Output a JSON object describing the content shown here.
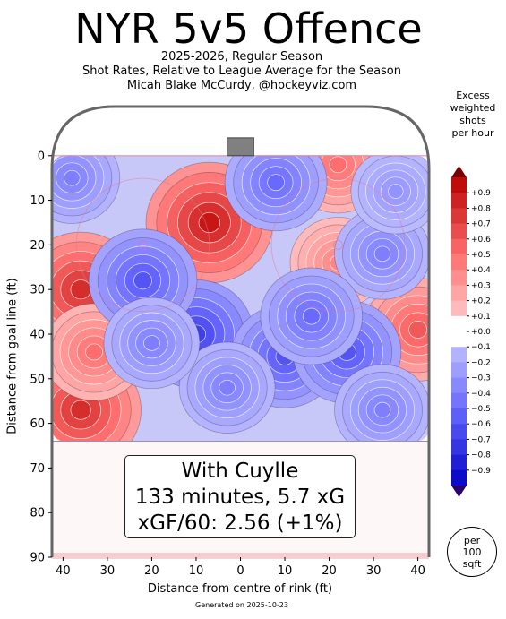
{
  "header": {
    "title": "NYR 5v5 Offence",
    "subtitle_lines": [
      "2025-2026, Regular Season",
      "Shot Rates, Relative to League Average for the Season",
      "Micah Blake McCurdy, @hockeyviz.com"
    ]
  },
  "infobox": {
    "line1": "With Cuylle",
    "line2": "133 minutes, 5.7 xG",
    "line3": "xGF/60: 2.56 (+1%)"
  },
  "unit_badge": {
    "line1": "per",
    "line2": "100",
    "line3": "sqft"
  },
  "footer": "Generated on 2025-10-23",
  "chart_data": {
    "type": "heatmap",
    "title": "NYR 5v5 Offence",
    "xlabel": "Distance from centre of rink (ft)",
    "ylabel": "Distance from goal line (ft)",
    "x_ticks": [
      "40",
      "30",
      "20",
      "10",
      "0",
      "10",
      "20",
      "30",
      "40"
    ],
    "x_tick_values": [
      -40,
      -30,
      -20,
      -10,
      0,
      10,
      20,
      30,
      40
    ],
    "y_ticks": [
      "0",
      "10",
      "20",
      "30",
      "40",
      "50",
      "60",
      "70",
      "80",
      "90"
    ],
    "y_tick_values": [
      0,
      10,
      20,
      30,
      40,
      50,
      60,
      70,
      80,
      90
    ],
    "xlim": [
      -42.5,
      42.5
    ],
    "ylim": [
      90,
      -11
    ],
    "colorbar": {
      "title_lines": [
        "Excess",
        "weighted",
        "shots",
        "per hour"
      ],
      "tick_labels": [
        "+0.9",
        "+0.8",
        "+0.7",
        "+0.6",
        "+0.5",
        "+0.4",
        "+0.3",
        "+0.2",
        "+0.1",
        "+0.0",
        "−0.1",
        "−0.2",
        "−0.3",
        "−0.4",
        "−0.5",
        "−0.6",
        "−0.7",
        "−0.8",
        "−0.9"
      ],
      "tick_values": [
        0.9,
        0.8,
        0.7,
        0.6,
        0.5,
        0.4,
        0.3,
        0.2,
        0.1,
        0.0,
        -0.1,
        -0.2,
        -0.3,
        -0.4,
        -0.5,
        -0.6,
        -0.7,
        -0.8,
        -0.9
      ],
      "range": [
        -1.0,
        1.0
      ]
    },
    "hotspots": [
      {
        "x": -7,
        "y": 15,
        "value": 0.9
      },
      {
        "x": -36,
        "y": 30,
        "value": 0.8
      },
      {
        "x": -36,
        "y": 57,
        "value": 0.8
      },
      {
        "x": -33,
        "y": 44,
        "value": 0.5
      },
      {
        "x": 22,
        "y": 2,
        "value": 0.5
      },
      {
        "x": 22,
        "y": 24,
        "value": 0.4
      },
      {
        "x": 40,
        "y": 39,
        "value": 0.6
      },
      {
        "x": -10,
        "y": 40,
        "value": -0.7
      },
      {
        "x": 10,
        "y": 45,
        "value": -0.6
      },
      {
        "x": 24,
        "y": 44,
        "value": -0.6
      },
      {
        "x": -22,
        "y": 28,
        "value": -0.6
      },
      {
        "x": 8,
        "y": 6,
        "value": -0.5
      },
      {
        "x": 32,
        "y": 22,
        "value": -0.4
      },
      {
        "x": 16,
        "y": 36,
        "value": -0.5
      },
      {
        "x": -3,
        "y": 52,
        "value": -0.4
      },
      {
        "x": 32,
        "y": 57,
        "value": -0.4
      },
      {
        "x": -38,
        "y": 5,
        "value": -0.4
      },
      {
        "x": -20,
        "y": 42,
        "value": -0.4
      },
      {
        "x": 35,
        "y": 8,
        "value": -0.3
      }
    ]
  },
  "colors": {
    "positive": "#ff0000",
    "negative": "#0000ff",
    "rink_outline": "#666666",
    "goal": "#808080"
  }
}
